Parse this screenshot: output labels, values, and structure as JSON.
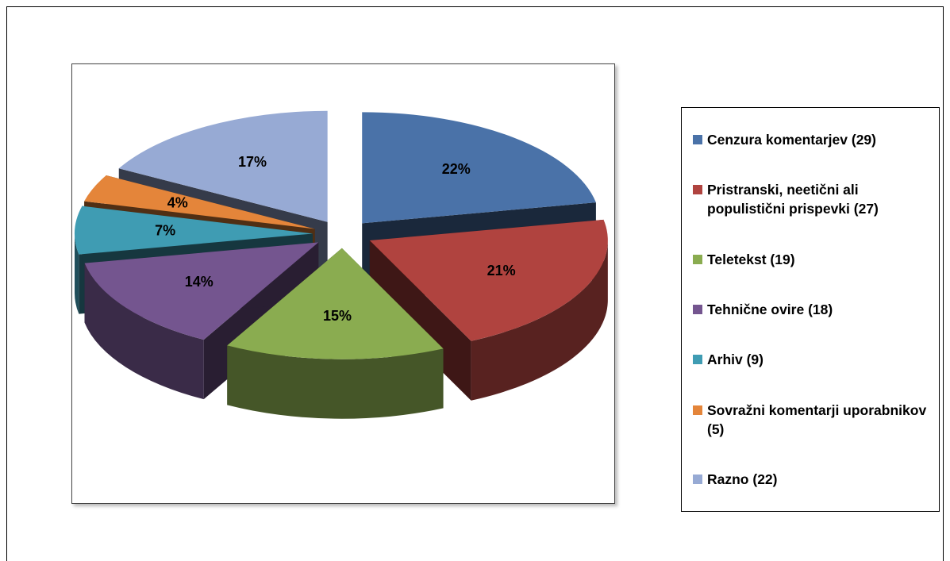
{
  "chart_data": {
    "type": "pie3d",
    "categories": [
      "Cenzura komentarjev (29)",
      "Pristranski, neetični ali populistični prispevki (27)",
      "Teletekst (19)",
      "Tehnične ovire (18)",
      "Arhiv (9)",
      "Sovražni komentarji uporabnikov (5)",
      "Razno (22)"
    ],
    "values": [
      22,
      21,
      15,
      14,
      7,
      4,
      17
    ],
    "value_labels": [
      "22%",
      "21%",
      "15%",
      "14%",
      "7%",
      "4%",
      "17%"
    ],
    "colors": [
      "#4a72a8",
      "#b0433f",
      "#8aac50",
      "#74558f",
      "#3f9cb3",
      "#e4853a",
      "#97aad4"
    ],
    "legend": "right"
  }
}
